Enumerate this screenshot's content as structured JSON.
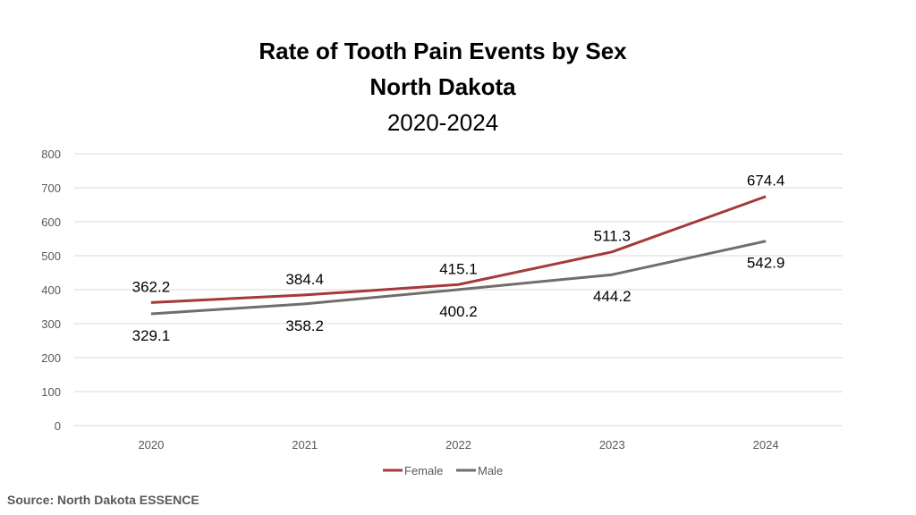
{
  "chart_data": {
    "type": "line",
    "title": "Rate of Tooth Pain Events by Sex",
    "subtitle": "North Dakota",
    "subtitle2": "2020-2024",
    "categories": [
      "2020",
      "2021",
      "2022",
      "2023",
      "2024"
    ],
    "series": [
      {
        "name": "Female",
        "color": "#a5393b",
        "values": [
          362.2,
          384.4,
          415.1,
          511.3,
          674.4
        ]
      },
      {
        "name": "Male",
        "color": "#706e6b",
        "values": [
          329.1,
          358.2,
          400.2,
          444.2,
          542.9
        ]
      }
    ],
    "ylim": [
      0,
      800
    ],
    "yticks": [
      0,
      100,
      200,
      300,
      400,
      500,
      600,
      700,
      800
    ],
    "grid": true,
    "legend": "bottom",
    "xlabel": "",
    "ylabel": ""
  },
  "source": "Source: North Dakota ESSENCE"
}
